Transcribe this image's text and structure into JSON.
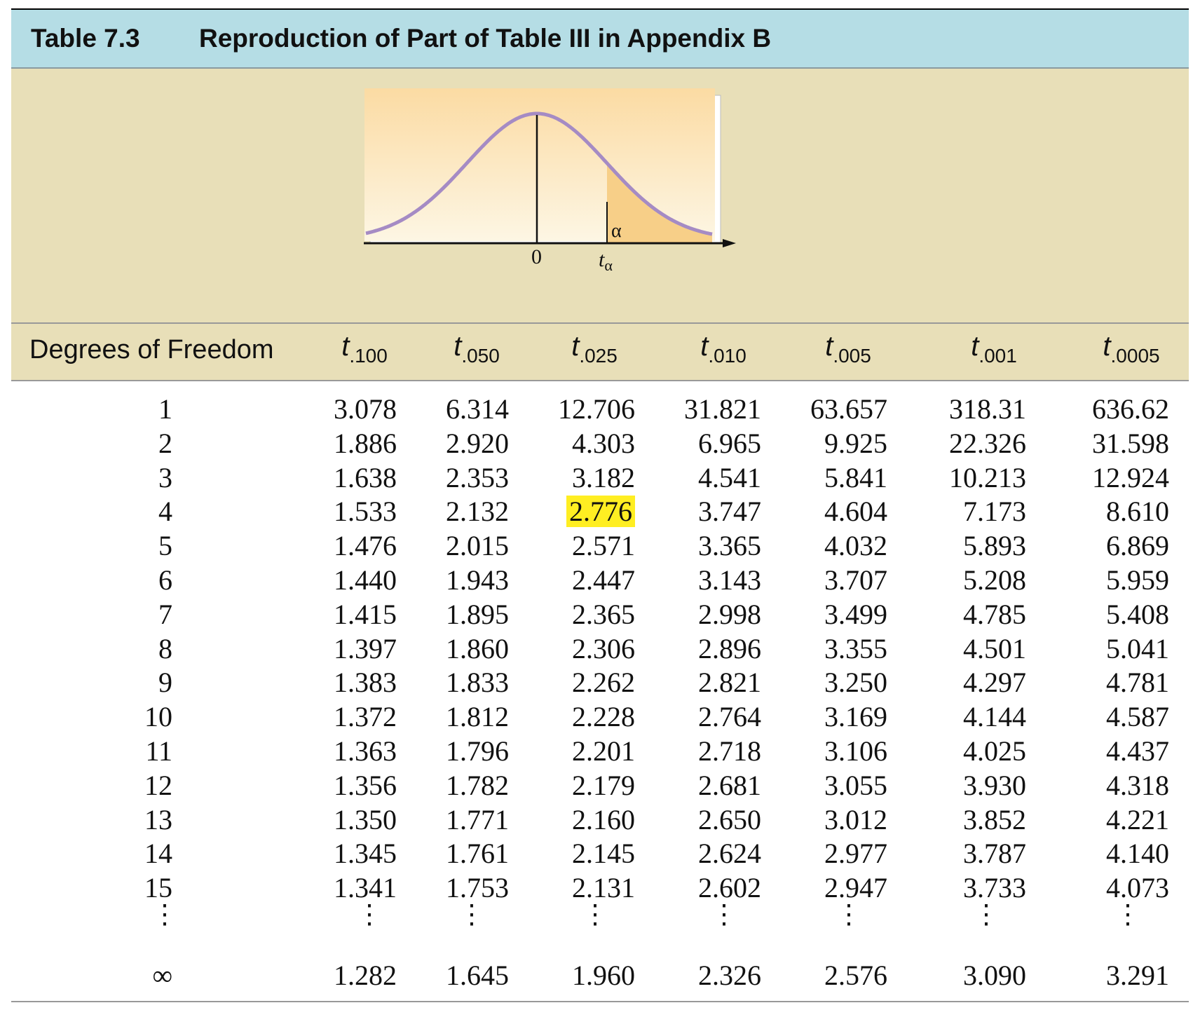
{
  "header": {
    "table_number": "Table 7.3",
    "table_title": "Reproduction of Part of Table III in Appendix B"
  },
  "figure": {
    "zero_label": "0",
    "t_label": "t",
    "t_sub": "α",
    "alpha_label": "α",
    "curve_color": "#a58bc4",
    "shade_color": "#f7cf88"
  },
  "table": {
    "df_header": "Degrees of Freedom",
    "column_headers": [
      {
        "t": "t",
        "sub": ".100"
      },
      {
        "t": "t",
        "sub": ".050"
      },
      {
        "t": "t",
        "sub": ".025"
      },
      {
        "t": "t",
        "sub": ".010"
      },
      {
        "t": "t",
        "sub": ".005"
      },
      {
        "t": "t",
        "sub": ".001"
      },
      {
        "t": "t",
        "sub": ".0005"
      }
    ],
    "rows": [
      {
        "df": "1",
        "v": [
          "3.078",
          "6.314",
          "12.706",
          "31.821",
          "63.657",
          "318.31",
          "636.62"
        ]
      },
      {
        "df": "2",
        "v": [
          "1.886",
          "2.920",
          "4.303",
          "6.965",
          "9.925",
          "22.326",
          "31.598"
        ]
      },
      {
        "df": "3",
        "v": [
          "1.638",
          "2.353",
          "3.182",
          "4.541",
          "5.841",
          "10.213",
          "12.924"
        ]
      },
      {
        "df": "4",
        "v": [
          "1.533",
          "2.132",
          "2.776",
          "3.747",
          "4.604",
          "7.173",
          "8.610"
        ]
      },
      {
        "df": "5",
        "v": [
          "1.476",
          "2.015",
          "2.571",
          "3.365",
          "4.032",
          "5.893",
          "6.869"
        ]
      },
      {
        "df": "6",
        "v": [
          "1.440",
          "1.943",
          "2.447",
          "3.143",
          "3.707",
          "5.208",
          "5.959"
        ]
      },
      {
        "df": "7",
        "v": [
          "1.415",
          "1.895",
          "2.365",
          "2.998",
          "3.499",
          "4.785",
          "5.408"
        ]
      },
      {
        "df": "8",
        "v": [
          "1.397",
          "1.860",
          "2.306",
          "2.896",
          "3.355",
          "4.501",
          "5.041"
        ]
      },
      {
        "df": "9",
        "v": [
          "1.383",
          "1.833",
          "2.262",
          "2.821",
          "3.250",
          "4.297",
          "4.781"
        ]
      },
      {
        "df": "10",
        "v": [
          "1.372",
          "1.812",
          "2.228",
          "2.764",
          "3.169",
          "4.144",
          "4.587"
        ]
      },
      {
        "df": "11",
        "v": [
          "1.363",
          "1.796",
          "2.201",
          "2.718",
          "3.106",
          "4.025",
          "4.437"
        ]
      },
      {
        "df": "12",
        "v": [
          "1.356",
          "1.782",
          "2.179",
          "2.681",
          "3.055",
          "3.930",
          "4.318"
        ]
      },
      {
        "df": "13",
        "v": [
          "1.350",
          "1.771",
          "2.160",
          "2.650",
          "3.012",
          "3.852",
          "4.221"
        ]
      },
      {
        "df": "14",
        "v": [
          "1.345",
          "1.761",
          "2.145",
          "2.624",
          "2.977",
          "3.787",
          "4.140"
        ]
      },
      {
        "df": "15",
        "v": [
          "1.341",
          "1.753",
          "2.131",
          "2.602",
          "2.947",
          "3.733",
          "4.073"
        ]
      }
    ],
    "ellipsis": "⋮",
    "infinity_row": {
      "df": "∞",
      "v": [
        "1.282",
        "1.645",
        "1.960",
        "2.326",
        "2.576",
        "3.090",
        "3.291"
      ]
    },
    "highlight": {
      "row": 3,
      "col": 2,
      "color": "#ffee22"
    }
  }
}
